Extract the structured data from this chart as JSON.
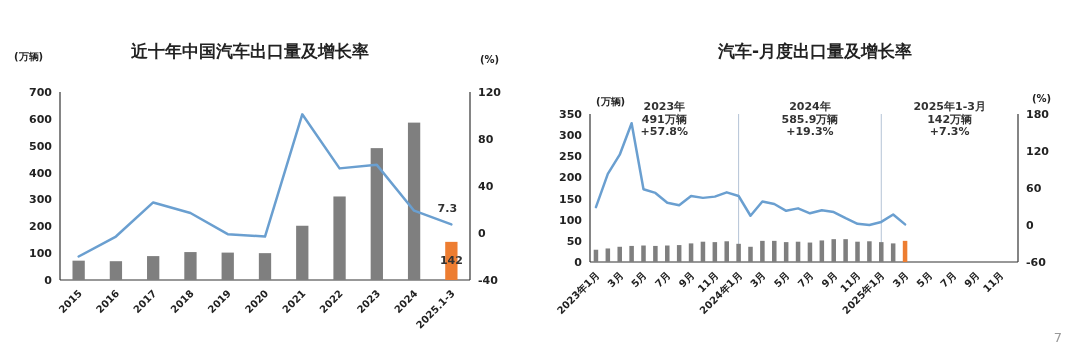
{
  "chart_data": [
    {
      "type": "bar",
      "title": "近十年中国汽车出口量及增长率",
      "ylabel": "(万辆)",
      "y2label": "(%)",
      "categories": [
        "2015",
        "2016",
        "2017",
        "2018",
        "2019",
        "2020",
        "2021",
        "2022",
        "2023",
        "2024",
        "2025.1-3"
      ],
      "series": [
        {
          "values": [
            72,
            70,
            89,
            104,
            102,
            100,
            202,
            311,
            491,
            586,
            142
          ],
          "colors": [
            "#7f7f7f",
            "#7f7f7f",
            "#7f7f7f",
            "#7f7f7f",
            "#7f7f7f",
            "#7f7f7f",
            "#7f7f7f",
            "#7f7f7f",
            "#7f7f7f",
            "#7f7f7f",
            "#ed7d31"
          ],
          "value_labels": [
            null,
            null,
            null,
            null,
            null,
            null,
            null,
            null,
            null,
            null,
            "142"
          ]
        },
        {
          "type": "line",
          "axis": "y2",
          "color": "#6a9fd0",
          "values": [
            -20,
            -3,
            26,
            17,
            -1,
            -3,
            101,
            55,
            58,
            19,
            7.3
          ],
          "value_labels": [
            null,
            null,
            null,
            null,
            null,
            null,
            null,
            null,
            null,
            null,
            "7.3"
          ]
        }
      ],
      "ylim": [
        0,
        700
      ],
      "yticks": [
        0,
        100,
        200,
        300,
        400,
        500,
        600,
        700
      ],
      "y2lim": [
        -40,
        120
      ],
      "y2ticks": [
        -40,
        0,
        40,
        80,
        120
      ],
      "grid": false,
      "marker": "none",
      "line_style": "solid"
    },
    {
      "type": "bar",
      "title": "汽车-月度出口量及增长率",
      "ylabel": "(万辆)",
      "y2label": "(%)",
      "categories": [
        "2023年1月",
        null,
        "3月",
        null,
        "5月",
        null,
        "7月",
        null,
        "9月",
        null,
        "11月",
        null,
        "2024年1月",
        null,
        "3月",
        null,
        "5月",
        null,
        "7月",
        null,
        "9月",
        null,
        "11月",
        null,
        "2025年1月",
        null,
        "3月",
        null,
        "5月",
        null,
        "7月",
        null,
        "9月",
        null,
        "11月",
        null
      ],
      "series": [
        {
          "values": [
            29,
            32,
            36,
            38,
            39,
            38,
            39,
            40,
            44,
            48,
            47,
            49,
            43,
            36,
            50,
            50,
            47,
            48,
            46,
            51,
            54,
            54,
            48,
            49,
            47,
            44,
            50,
            null,
            null,
            null,
            null,
            null,
            null,
            null,
            null,
            null
          ],
          "colors": [
            "#7f7f7f",
            "#7f7f7f",
            "#7f7f7f",
            "#7f7f7f",
            "#7f7f7f",
            "#7f7f7f",
            "#7f7f7f",
            "#7f7f7f",
            "#7f7f7f",
            "#7f7f7f",
            "#7f7f7f",
            "#7f7f7f",
            "#7f7f7f",
            "#7f7f7f",
            "#7f7f7f",
            "#7f7f7f",
            "#7f7f7f",
            "#7f7f7f",
            "#7f7f7f",
            "#7f7f7f",
            "#7f7f7f",
            "#7f7f7f",
            "#7f7f7f",
            "#7f7f7f",
            "#7f7f7f",
            "#7f7f7f",
            "#ed7d31",
            null,
            null,
            null,
            null,
            null,
            null,
            null,
            null,
            null
          ]
        },
        {
          "type": "line",
          "axis": "y2",
          "color": "#6a9fd0",
          "values": [
            29,
            83,
            114,
            165,
            58,
            52,
            36,
            32,
            47,
            44,
            46,
            53,
            47,
            15,
            38,
            34,
            23,
            27,
            19,
            24,
            21,
            11,
            2,
            0,
            5,
            17,
            1,
            null,
            null,
            null,
            null,
            null,
            null,
            null,
            null,
            null
          ]
        }
      ],
      "ylim": [
        0,
        350
      ],
      "yticks": [
        0,
        50,
        100,
        150,
        200,
        250,
        300,
        350
      ],
      "y2lim": [
        -60,
        180
      ],
      "y2ticks": [
        -60,
        0,
        60,
        120,
        180
      ],
      "ref_lines": [
        {
          "axis": "x",
          "value": "2024年1月",
          "color": "#b4c3d6"
        },
        {
          "axis": "x",
          "value": "2025年1月",
          "color": "#b4c3d6"
        }
      ],
      "annotations": [
        "2023年\n491万辆\n+57.8%",
        "2024年\n585.9万辆\n+19.3%",
        "2025年1-3月\n142万辆\n+7.3%",
        "7"
      ],
      "grid": false,
      "marker": "none",
      "line_style": "solid"
    }
  ]
}
